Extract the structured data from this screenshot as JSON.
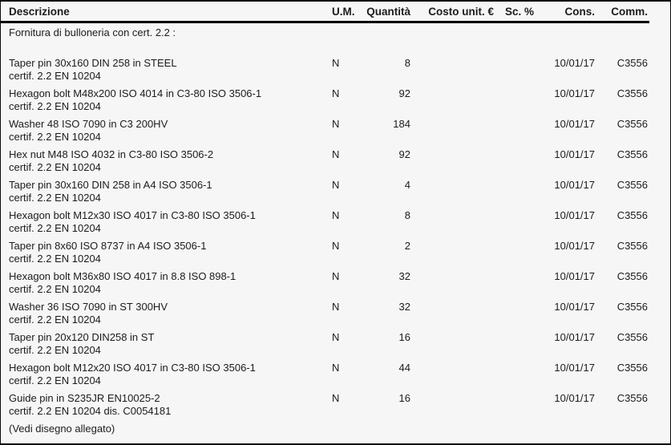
{
  "table": {
    "columns": {
      "descrizione": "Descrizione",
      "um": "U.M.",
      "quantita": "Quantità",
      "costo_unit": "Costo unit. €",
      "sconto": "Sc. %",
      "consegna": "Cons.",
      "commessa": "Comm."
    },
    "intro": "Fornitura di bulloneria con cert. 2.2 :",
    "items": [
      {
        "desc1": "Taper pin 30x160 DIN 258 in STEEL",
        "desc2": "certif. 2.2 EN 10204",
        "um": "N",
        "qty": "8",
        "costo": "",
        "sc": "",
        "cons": "10/01/17",
        "comm": "C3556"
      },
      {
        "desc1": "Hexagon bolt M48x200 ISO 4014 in C3-80 ISO 3506-1",
        "desc2": "certif. 2.2 EN 10204",
        "um": "N",
        "qty": "92",
        "costo": "",
        "sc": "",
        "cons": "10/01/17",
        "comm": "C3556"
      },
      {
        "desc1": "Washer 48 ISO 7090 in C3 200HV",
        "desc2": "certif. 2.2 EN 10204",
        "um": "N",
        "qty": "184",
        "costo": "",
        "sc": "",
        "cons": "10/01/17",
        "comm": "C3556"
      },
      {
        "desc1": "Hex nut M48 ISO 4032 in C3-80 ISO 3506-2",
        "desc2": "certif. 2.2 EN 10204",
        "um": "N",
        "qty": "92",
        "costo": "",
        "sc": "",
        "cons": "10/01/17",
        "comm": "C3556"
      },
      {
        "desc1": "Taper pin 30x160 DIN 258 in A4 ISO 3506-1",
        "desc2": "certif. 2.2 EN 10204",
        "um": "N",
        "qty": "4",
        "costo": "",
        "sc": "",
        "cons": "10/01/17",
        "comm": "C3556"
      },
      {
        "desc1": "Hexagon bolt M12x30 ISO 4017 in C3-80 ISO 3506-1",
        "desc2": "certif. 2.2 EN 10204",
        "um": "N",
        "qty": "8",
        "costo": "",
        "sc": "",
        "cons": "10/01/17",
        "comm": "C3556"
      },
      {
        "desc1": "Taper pin 8x60 ISO 8737 in A4 ISO 3506-1",
        "desc2": "certif. 2.2 EN 10204",
        "um": "N",
        "qty": "2",
        "costo": "",
        "sc": "",
        "cons": "10/01/17",
        "comm": "C3556"
      },
      {
        "desc1": "Hexagon bolt M36x80 ISO 4017 in 8.8 ISO 898-1",
        "desc2": "certif. 2.2 EN 10204",
        "um": "N",
        "qty": "32",
        "costo": "",
        "sc": "",
        "cons": "10/01/17",
        "comm": "C3556"
      },
      {
        "desc1": "Washer 36 ISO 7090 in ST 300HV",
        "desc2": "certif. 2.2 EN 10204",
        "um": "N",
        "qty": "32",
        "costo": "",
        "sc": "",
        "cons": "10/01/17",
        "comm": "C3556"
      },
      {
        "desc1": "Taper pin 20x120 DIN258 in ST",
        "desc2": "certif. 2.2 EN 10204",
        "um": "N",
        "qty": "16",
        "costo": "",
        "sc": "",
        "cons": "10/01/17",
        "comm": "C3556"
      },
      {
        "desc1": "Hexagon bolt M12x20 ISO 4017 in C3-80 ISO 3506-1",
        "desc2": "certif. 2.2 EN 10204",
        "um": "N",
        "qty": "44",
        "costo": "",
        "sc": "",
        "cons": "10/01/17",
        "comm": "C3556"
      },
      {
        "desc1": "Guide pin in S235JR EN10025-2",
        "desc2": "certif. 2.2 EN 10204 dis. C0054181",
        "um": "N",
        "qty": "16",
        "costo": "",
        "sc": "",
        "cons": "10/01/17",
        "comm": "C3556"
      }
    ],
    "footer_note": "(Vedi disegno allegato)"
  },
  "colors": {
    "background": "#f6f6f6",
    "border": "#0a0a0a",
    "text": "#1c1c1c"
  }
}
